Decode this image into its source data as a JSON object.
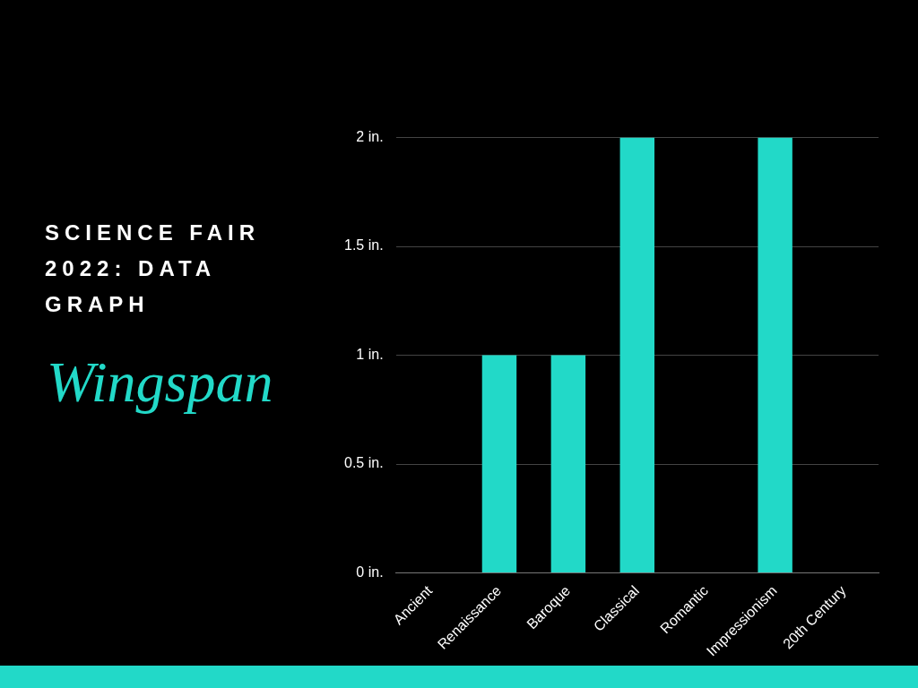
{
  "chart_data": {
    "type": "bar",
    "title": "SCIENCE FAIR 2022: DATA GRAPH",
    "subtitle": "Wingspan",
    "categories": [
      "Ancient",
      "Renaissance",
      "Baroque",
      "Classical",
      "Romantic",
      "Impressionism",
      "20th Century"
    ],
    "values": [
      0,
      1,
      1,
      2,
      0,
      2,
      0
    ],
    "color": "#22d9c8",
    "ylim": [
      0,
      2
    ],
    "yticks": [
      {
        "value": 0,
        "label": "0 in."
      },
      {
        "value": 0.5,
        "label": "0.5 in."
      },
      {
        "value": 1,
        "label": "1 in."
      },
      {
        "value": 1.5,
        "label": "1.5 in."
      },
      {
        "value": 2,
        "label": "2 in."
      }
    ],
    "grid": "y"
  }
}
